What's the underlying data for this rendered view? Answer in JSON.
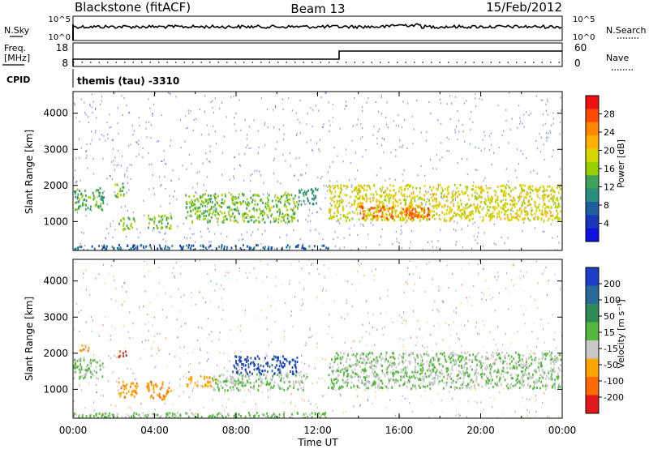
{
  "header": {
    "station": "Blackstone (fitACF)",
    "beam": "Beam 13",
    "date": "15/Feb/2012"
  },
  "top_panels": {
    "nsky_label": "N.Sky",
    "nsearch_label": "N.Search",
    "freq_label_1": "Freq.",
    "freq_label_2": "[MHz]",
    "nave_label": "Nave",
    "cpid_label": "CPID",
    "cpid_value": "themis (tau) -3310",
    "noise_left_ticks": [
      "10^5",
      "10^0"
    ],
    "noise_right_ticks": [
      "10^5",
      "10^0"
    ],
    "freq_ticks": [
      "18",
      "8"
    ],
    "nave_ticks": [
      "60",
      "0"
    ]
  },
  "colorbars": {
    "power": {
      "label": "Power [dB]",
      "ticks": [
        "28",
        "24",
        "20",
        "16",
        "12",
        "8",
        "4"
      ],
      "colors": [
        "#ee1111",
        "#ff4a00",
        "#ff8800",
        "#ffb000",
        "#d7d700",
        "#9bd000",
        "#3fa35a",
        "#2b8f80",
        "#1f5fa0",
        "#1836b8",
        "#1010e0"
      ]
    },
    "velocity": {
      "label": "Velocity [m s⁻¹]",
      "ticks": [
        "200",
        "100",
        "50",
        "15",
        "-15",
        "-50",
        "-100",
        "-200"
      ],
      "colors": [
        "#1d3fc8",
        "#2a6a9a",
        "#2f8a55",
        "#53b83d",
        "#c8c8c8",
        "#ffa500",
        "#ff6a00",
        "#e41a1a"
      ]
    }
  },
  "axes": {
    "ylabel": "Slant Range [km]",
    "xlabel": "Time UT",
    "yticks": [
      "4000",
      "3000",
      "2000",
      "1000"
    ],
    "xticks": [
      "00:00",
      "04:00",
      "08:00",
      "12:00",
      "16:00",
      "20:00",
      "00:00"
    ]
  },
  "chart_data": [
    {
      "type": "heatmap",
      "name": "Power",
      "x_unit": "hours UT",
      "y_unit": "km",
      "xlim": [
        0,
        24
      ],
      "ylim": [
        200,
        4600
      ],
      "clim": [
        0,
        30
      ],
      "features": [
        {
          "time": [
            0.0,
            1.5
          ],
          "range": [
            1350,
            1950
          ],
          "value": 12
        },
        {
          "time": [
            2.0,
            2.5
          ],
          "range": [
            1700,
            2100
          ],
          "value": 14
        },
        {
          "time": [
            2.2,
            3.0
          ],
          "range": [
            800,
            1150
          ],
          "value": 14
        },
        {
          "time": [
            3.6,
            4.8
          ],
          "range": [
            800,
            1200
          ],
          "value": 14
        },
        {
          "time": [
            5.5,
            11.0
          ],
          "range": [
            1000,
            1800
          ],
          "value": 14
        },
        {
          "time": [
            11.0,
            12.0
          ],
          "range": [
            1500,
            1950
          ],
          "value": 10
        },
        {
          "time": [
            12.5,
            23.9
          ],
          "range": [
            1050,
            2050
          ],
          "value": 18
        },
        {
          "time": [
            14.0,
            17.5
          ],
          "range": [
            1100,
            1450
          ],
          "value": 26
        },
        {
          "time": [
            0.0,
            12.5
          ],
          "range": [
            220,
            380
          ],
          "value": 6
        }
      ]
    },
    {
      "type": "heatmap",
      "name": "Velocity",
      "x_unit": "hours UT",
      "y_unit": "km",
      "xlim": [
        0,
        24
      ],
      "ylim": [
        200,
        4600
      ],
      "clim": [
        -200,
        200
      ],
      "features": [
        {
          "time": [
            0.0,
            1.5
          ],
          "range": [
            1300,
            1900
          ],
          "value": 0
        },
        {
          "time": [
            0.3,
            0.9
          ],
          "range": [
            2100,
            2250
          ],
          "value": -120
        },
        {
          "time": [
            2.2,
            2.6
          ],
          "range": [
            1850,
            2100
          ],
          "value": -180
        },
        {
          "time": [
            2.2,
            3.2
          ],
          "range": [
            800,
            1250
          ],
          "value": -90
        },
        {
          "time": [
            3.6,
            4.8
          ],
          "range": [
            750,
            1250
          ],
          "value": -110
        },
        {
          "time": [
            5.5,
            7.0
          ],
          "range": [
            1100,
            1400
          ],
          "value": -80
        },
        {
          "time": [
            6.8,
            11.5
          ],
          "range": [
            1000,
            1450
          ],
          "value": 0
        },
        {
          "time": [
            7.8,
            11.0
          ],
          "range": [
            1450,
            1950
          ],
          "value": 180
        },
        {
          "time": [
            12.5,
            23.9
          ],
          "range": [
            1050,
            2050
          ],
          "value": 0
        },
        {
          "time": [
            0.0,
            12.5
          ],
          "range": [
            220,
            380
          ],
          "value": 20
        }
      ]
    }
  ]
}
